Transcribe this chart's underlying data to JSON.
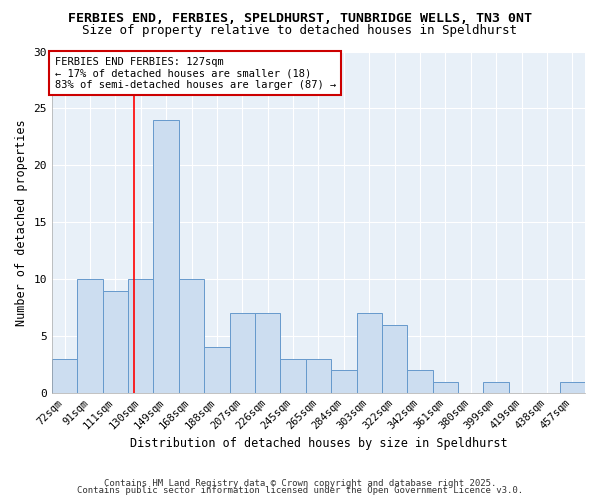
{
  "title1": "FERBIES END, FERBIES, SPELDHURST, TUNBRIDGE WELLS, TN3 0NT",
  "title2": "Size of property relative to detached houses in Speldhurst",
  "xlabel": "Distribution of detached houses by size in Speldhurst",
  "ylabel": "Number of detached properties",
  "categories": [
    "72sqm",
    "91sqm",
    "111sqm",
    "130sqm",
    "149sqm",
    "168sqm",
    "188sqm",
    "207sqm",
    "226sqm",
    "245sqm",
    "265sqm",
    "284sqm",
    "303sqm",
    "322sqm",
    "342sqm",
    "361sqm",
    "380sqm",
    "399sqm",
    "419sqm",
    "438sqm",
    "457sqm"
  ],
  "values": [
    3,
    10,
    9,
    10,
    24,
    10,
    4,
    7,
    7,
    3,
    3,
    2,
    7,
    6,
    2,
    1,
    0,
    1,
    0,
    0,
    1
  ],
  "bar_color": "#ccddf0",
  "bar_edge_color": "#6699cc",
  "plot_bg_color": "#e8f0f8",
  "fig_bg_color": "#ffffff",
  "grid_color": "#ffffff",
  "red_line_x": 2.73,
  "annotation_title": "FERBIES END FERBIES: 127sqm",
  "annotation_line1": "← 17% of detached houses are smaller (18)",
  "annotation_line2": "83% of semi-detached houses are larger (87) →",
  "annotation_box_color": "#ffffff",
  "annotation_box_edge": "#cc0000",
  "ylim": [
    0,
    30
  ],
  "yticks": [
    0,
    5,
    10,
    15,
    20,
    25,
    30
  ],
  "footnote1": "Contains HM Land Registry data © Crown copyright and database right 2025.",
  "footnote2": "Contains public sector information licensed under the Open Government Licence v3.0."
}
